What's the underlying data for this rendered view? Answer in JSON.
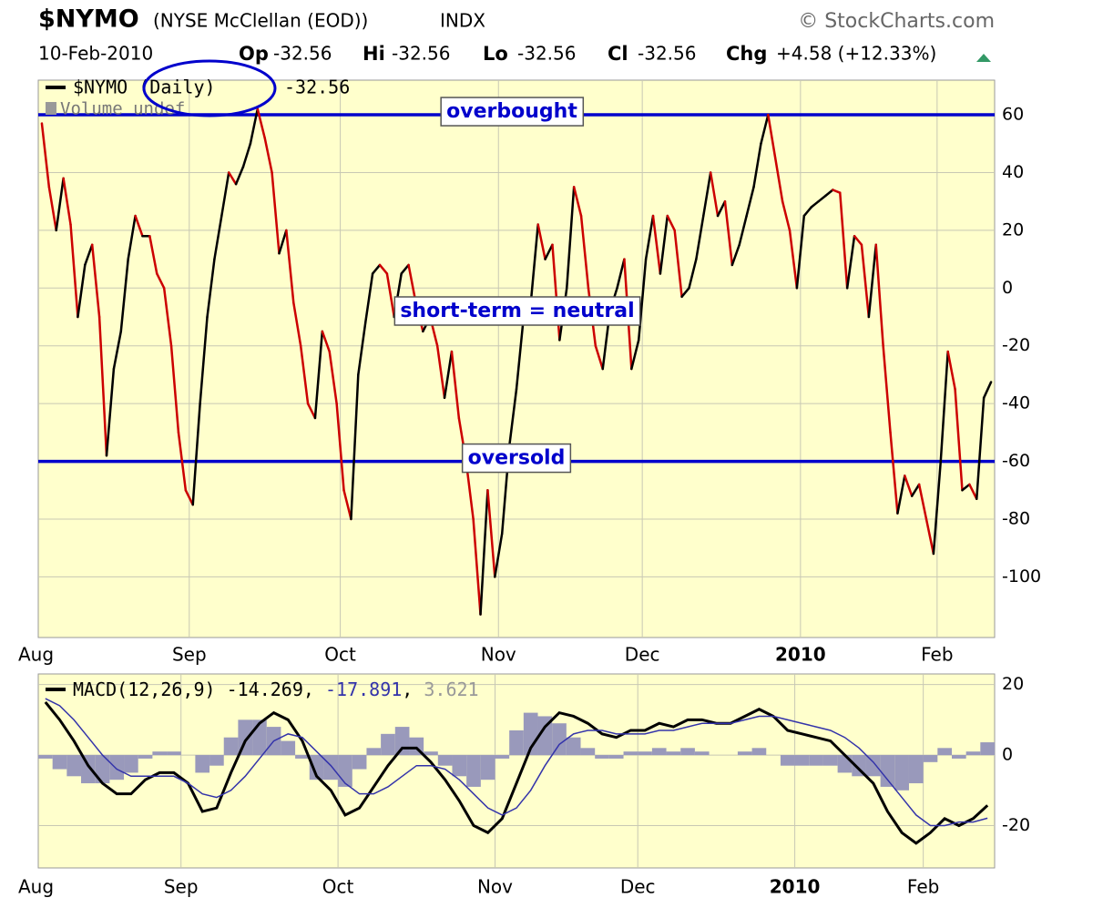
{
  "header": {
    "symbol": "$NYMO",
    "description": "(NYSE McClellan (EOD))",
    "exchange": "INDX",
    "source": "© StockCharts.com",
    "date": "10-Feb-2010",
    "quote": [
      {
        "label": "Op",
        "value": -32.56
      },
      {
        "label": "Hi",
        "value": -32.56
      },
      {
        "label": "Lo",
        "value": -32.56
      },
      {
        "label": "Cl",
        "value": -32.56
      },
      {
        "label": "Chg",
        "value": "+4.58 (+12.33%)"
      }
    ]
  },
  "chart_data": [
    {
      "type": "line",
      "legend_extra": "Volume undef",
      "categories": [
        "Aug",
        null,
        null,
        null,
        null,
        null,
        null,
        null,
        null,
        null,
        null,
        null,
        null,
        null,
        null,
        null,
        null,
        null,
        null,
        null,
        null,
        "Sep",
        null,
        null,
        null,
        null,
        null,
        null,
        null,
        null,
        null,
        null,
        null,
        null,
        null,
        null,
        null,
        null,
        null,
        null,
        null,
        null,
        "Oct",
        null,
        null,
        null,
        null,
        null,
        null,
        null,
        null,
        null,
        null,
        null,
        null,
        null,
        null,
        null,
        null,
        null,
        null,
        null,
        null,
        null,
        "Nov",
        null,
        null,
        null,
        null,
        null,
        null,
        null,
        null,
        null,
        null,
        null,
        null,
        null,
        null,
        null,
        null,
        null,
        null,
        null,
        "Dec",
        null,
        null,
        null,
        null,
        null,
        null,
        null,
        null,
        null,
        null,
        null,
        null,
        null,
        null,
        null,
        null,
        null,
        null,
        null,
        null,
        null,
        "2010",
        null,
        null,
        null,
        null,
        null,
        null,
        null,
        null,
        null,
        null,
        null,
        null,
        null,
        null,
        null,
        null,
        null,
        null,
        "Feb",
        null,
        null,
        null,
        null,
        null,
        null,
        null
      ],
      "series": [
        {
          "name": "$NYMO (Daily)",
          "up_color": "#000000",
          "down_color": "#cc0000",
          "values": [
            57,
            35,
            20,
            38,
            22,
            -10,
            8,
            15,
            -10,
            -58,
            -28,
            -15,
            10,
            25,
            18,
            18,
            5,
            0,
            -20,
            -50,
            -70,
            -75,
            -40,
            -10,
            10,
            25,
            40,
            36,
            42,
            50,
            62,
            52,
            40,
            12,
            20,
            -5,
            -20,
            -40,
            -45,
            -15,
            -22,
            -40,
            -70,
            -80,
            -30,
            -12,
            5,
            8,
            5,
            -10,
            5,
            8,
            -5,
            -15,
            -10,
            -20,
            -38,
            -22,
            -45,
            -60,
            -80,
            -113,
            -70,
            -100,
            -85,
            -55,
            -35,
            -10,
            -5,
            22,
            10,
            15,
            -18,
            0,
            35,
            25,
            0,
            -20,
            -28,
            -8,
            0,
            10,
            -28,
            -18,
            10,
            25,
            5,
            25,
            20,
            -3,
            0,
            10,
            25,
            40,
            25,
            30,
            8,
            15,
            25,
            35,
            50,
            60,
            45,
            30,
            20,
            0,
            25,
            28,
            30,
            32,
            34,
            33,
            0,
            18,
            15,
            -10,
            15,
            -20,
            -50,
            -78,
            -65,
            -72,
            -68,
            -80,
            -92,
            -60,
            -22,
            -35,
            -70,
            -68,
            -73,
            -38,
            -32.56
          ]
        }
      ],
      "ylim": [
        -121,
        72
      ],
      "yticks": [
        60,
        40,
        20,
        0,
        -20,
        -40,
        -60,
        -80,
        -100
      ],
      "grid": true,
      "hlines": [
        {
          "value": 60,
          "label": "overbought",
          "color": "#0000cc"
        },
        {
          "value": -60,
          "label": "oversold",
          "color": "#0000cc"
        }
      ],
      "annotation": "short-term = neutral"
    },
    {
      "type": "macd",
      "categories": [
        "Aug",
        null,
        null,
        null,
        null,
        null,
        null,
        null,
        null,
        null,
        "Sep",
        null,
        null,
        null,
        null,
        null,
        null,
        null,
        null,
        null,
        null,
        "Oct",
        null,
        null,
        null,
        null,
        null,
        null,
        null,
        null,
        null,
        null,
        "Nov",
        null,
        null,
        null,
        null,
        null,
        null,
        null,
        null,
        null,
        "Dec",
        null,
        null,
        null,
        null,
        null,
        null,
        null,
        null,
        null,
        null,
        "2010",
        null,
        null,
        null,
        null,
        null,
        null,
        null,
        null,
        "Feb",
        null,
        null,
        null,
        null
      ],
      "series": [
        {
          "name": "MACD(12,26,9)",
          "color": "#000000",
          "values": [
            15,
            10,
            4,
            -3,
            -8,
            -11,
            -11,
            -7,
            -5,
            -5,
            -8,
            -16,
            -15,
            -5,
            4,
            9,
            12,
            10,
            4,
            -6,
            -10,
            -17,
            -15,
            -9,
            -3,
            2,
            2,
            -2,
            -7,
            -13,
            -20,
            -22,
            -18,
            -8,
            2,
            8,
            12,
            11,
            9,
            6,
            5,
            7,
            7,
            9,
            8,
            10,
            10,
            9,
            9,
            11,
            13,
            11,
            7,
            6,
            5,
            4,
            0,
            -4,
            -8,
            -16,
            -22,
            -25,
            -22,
            -18,
            -20,
            -18,
            -14.269
          ]
        },
        {
          "color": "#3333aa",
          "values": [
            16,
            14,
            10,
            5,
            0,
            -4,
            -6,
            -6,
            -6,
            -6,
            -8,
            -11,
            -12,
            -10,
            -6,
            -1,
            4,
            6,
            5,
            1,
            -3,
            -8,
            -11,
            -11,
            -9,
            -6,
            -3,
            -3,
            -4,
            -7,
            -11,
            -15,
            -17,
            -15,
            -10,
            -3,
            3,
            6,
            7,
            7,
            6,
            6,
            6,
            7,
            7,
            8,
            9,
            9,
            9,
            10,
            11,
            11,
            10,
            9,
            8,
            7,
            5,
            2,
            -2,
            -7,
            -12,
            -17,
            -20,
            -20,
            -19,
            -19,
            -17.891
          ]
        },
        {
          "color": "#9999bb",
          "kind": "histogram",
          "values": [
            -1,
            -4,
            -6,
            -8,
            -8,
            -7,
            -5,
            -1,
            1,
            1,
            0,
            -5,
            -3,
            5,
            10,
            10,
            8,
            4,
            -1,
            -7,
            -7,
            -9,
            -4,
            2,
            6,
            8,
            5,
            1,
            -3,
            -6,
            -9,
            -7,
            -1,
            7,
            12,
            11,
            9,
            5,
            2,
            -1,
            -1,
            1,
            1,
            2,
            1,
            2,
            1,
            0,
            0,
            1,
            2,
            0,
            -3,
            -3,
            -3,
            -3,
            -5,
            -6,
            -6,
            -9,
            -10,
            -8,
            -2,
            2,
            -1,
            1,
            3.621
          ]
        }
      ],
      "ylim": [
        -32,
        23
      ],
      "yticks": [
        20,
        0,
        -20
      ],
      "grid": true
    }
  ]
}
